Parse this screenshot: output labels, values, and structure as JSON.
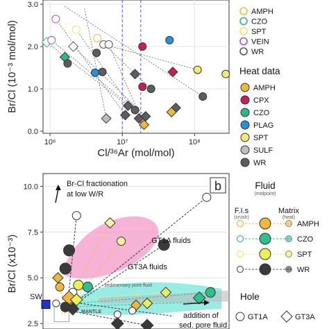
{
  "chart_data": [
    {
      "type": "scatter",
      "ylabel": "Br/Cl (10⁻³ mol/mol)",
      "xlabel": "Cl/³⁶Ar (mol/mol)",
      "xscale": "log",
      "xlim": [
        800000,
        300000000
      ],
      "ylim": [
        -0.05,
        3.1
      ],
      "x_ticks": [
        {
          "v": 1000000,
          "l": "10⁶"
        },
        {
          "v": 10000000,
          "l": "10⁷"
        },
        {
          "v": 100000000,
          "l": "10⁸"
        }
      ],
      "y_ticks": [
        {
          "v": 0,
          "l": "0.0"
        },
        {
          "v": 1,
          "l": "1.0"
        },
        {
          "v": 2,
          "l": "2.0"
        },
        {
          "v": 3,
          "l": "3.0"
        }
      ],
      "grid": true,
      "vertical_dashed_lines_x": [
        10000000,
        18000000
      ],
      "legend": {
        "fluid_items": [
          {
            "label": "AMPH",
            "color": "#e8c33b"
          },
          {
            "label": "CZO",
            "color": "#34b38a"
          },
          {
            "label": "SPT",
            "color": "#e9e86a"
          },
          {
            "label": "VEIN",
            "color": "#a653c5"
          },
          {
            "label": "WR",
            "color": "#555555"
          }
        ],
        "heat_title": "Heat data",
        "heat_items": [
          {
            "label": "AMPH",
            "color": "#f1b63c"
          },
          {
            "label": "CPX",
            "color": "#c81d57"
          },
          {
            "label": "CZO",
            "color": "#2db88b"
          },
          {
            "label": "PLAG",
            "color": "#2a8fd9"
          },
          {
            "label": "SPT",
            "color": "#eeeb76"
          },
          {
            "label": "SULF",
            "color": "#bdbdbd"
          },
          {
            "label": "WR",
            "color": "#5e5e5e"
          }
        ]
      },
      "points": [
        {
          "x": 900000,
          "y": 2.1,
          "kind": "fluid",
          "shape": "diamond",
          "color": "#34b38a"
        },
        {
          "x": 1050000,
          "y": 2.15,
          "kind": "fluid",
          "shape": "circle",
          "color": "#a653c5"
        },
        {
          "x": 1200000,
          "y": 2.65,
          "kind": "fluid",
          "shape": "circle",
          "color": "#a653c5"
        },
        {
          "x": 2300000,
          "y": 2.4,
          "kind": "fluid",
          "shape": "circle",
          "color": "#e9e86a"
        },
        {
          "x": 2100000,
          "y": 2.0,
          "kind": "fluid",
          "shape": "diamond",
          "color": "#555555"
        },
        {
          "x": 5500000,
          "y": 2.05,
          "kind": "fluid",
          "shape": "circle",
          "color": "#555555"
        },
        {
          "x": 4500000,
          "y": 2.2,
          "kind": "fluid",
          "shape": "circle",
          "color": "#e8c33b"
        },
        {
          "x": 6500000,
          "y": 2.05,
          "kind": "fluid",
          "shape": "circle",
          "color": "#555555"
        },
        {
          "x": 1600000,
          "y": 1.75,
          "kind": "heat",
          "shape": "diamond",
          "color": "#2db88b"
        },
        {
          "x": 1750000,
          "y": 1.6,
          "kind": "heat",
          "shape": "circle",
          "color": "#5e5e5e"
        },
        {
          "x": 4400000,
          "y": 1.85,
          "kind": "heat",
          "shape": "circle",
          "color": "#5e5e5e"
        },
        {
          "x": 4200000,
          "y": 1.38,
          "kind": "heat",
          "shape": "circle",
          "color": "#2a8fd9"
        },
        {
          "x": 5300000,
          "y": 1.4,
          "kind": "heat",
          "shape": "circle",
          "color": "#5e5e5e"
        },
        {
          "x": 19000000,
          "y": 2.0,
          "kind": "heat",
          "shape": "circle",
          "color": "#c81d57"
        },
        {
          "x": 45000000,
          "y": 2.15,
          "kind": "heat",
          "shape": "circle",
          "color": "#2a8fd9"
        },
        {
          "x": 15000000,
          "y": 1.35,
          "kind": "heat",
          "shape": "diamond",
          "color": "#5e5e5e"
        },
        {
          "x": 19000000,
          "y": 1.05,
          "kind": "heat",
          "shape": "circle",
          "color": "#c81d57"
        },
        {
          "x": 25000000,
          "y": 1.0,
          "kind": "heat",
          "shape": "circle",
          "color": "#5e5e5e"
        },
        {
          "x": 50000000,
          "y": 1.4,
          "kind": "heat",
          "shape": "diamond",
          "color": "#c81d57"
        },
        {
          "x": 110000000,
          "y": 1.45,
          "kind": "heat",
          "shape": "circle",
          "color": "#eeeb76"
        },
        {
          "x": 270000000,
          "y": 1.35,
          "kind": "heat",
          "shape": "circle",
          "color": "#eeeb76"
        },
        {
          "x": 130000000,
          "y": 0.82,
          "kind": "heat",
          "shape": "circle",
          "color": "#5e5e5e"
        },
        {
          "x": 55000000,
          "y": 0.55,
          "kind": "heat",
          "shape": "diamond",
          "color": "#5e5e5e"
        },
        {
          "x": 48000000,
          "y": 0.45,
          "kind": "heat",
          "shape": "diamond",
          "color": "#f1b63c"
        },
        {
          "x": 12000000,
          "y": 0.6,
          "kind": "heat",
          "shape": "diamond",
          "color": "#5e5e5e"
        },
        {
          "x": 15000000,
          "y": 0.5,
          "kind": "heat",
          "shape": "circle",
          "color": "#5e5e5e"
        },
        {
          "x": 11000000,
          "y": 0.38,
          "kind": "heat",
          "shape": "diamond",
          "color": "#5e5e5e"
        },
        {
          "x": 17000000,
          "y": 0.3,
          "kind": "heat",
          "shape": "diamond",
          "color": "#5e5e5e"
        },
        {
          "x": 21000000,
          "y": 0.35,
          "kind": "heat",
          "shape": "diamond",
          "color": "#5e5e5e"
        },
        {
          "x": 6000000,
          "y": 0.3,
          "kind": "heat",
          "shape": "diamond",
          "color": "#bdbdbd"
        },
        {
          "x": 20000000,
          "y": 0.15,
          "kind": "heat",
          "shape": "diamond",
          "color": "#f1b63c"
        }
      ],
      "links": [
        [
          900000,
          2.1,
          12000000,
          0.6
        ],
        [
          1050000,
          2.15,
          15000000,
          0.5
        ],
        [
          1200000,
          2.65,
          11000000,
          0.38
        ],
        [
          2300000,
          2.4,
          17000000,
          0.3
        ],
        [
          2100000,
          2.0,
          21000000,
          0.35
        ],
        [
          4500000,
          2.2,
          25000000,
          1.0
        ],
        [
          5500000,
          2.05,
          110000000,
          1.45
        ],
        [
          1600000,
          2.95,
          130000000,
          0.82
        ],
        [
          6500000,
          2.05,
          20000000,
          0.15
        ],
        [
          3000000,
          2.9,
          6000000,
          0.3
        ]
      ]
    },
    {
      "type": "scatter",
      "panel_label": "b",
      "ylabel": "Br/Cl (x10⁻³)",
      "ylim": [
        2.2,
        10.7
      ],
      "xlim": [
        0,
        100
      ],
      "y_ticks": [
        {
          "v": 2.5,
          "l": "2.5"
        },
        {
          "v": 5,
          "l": "5.0"
        },
        {
          "v": 7.5,
          "l": "7.5"
        },
        {
          "v": 10,
          "l": "10.0"
        }
      ],
      "grid": true,
      "annotations": {
        "frac_line1": "Br-Cl fractionation",
        "frac_line2": "at low W/R",
        "gt1a": "GT1A fluids",
        "gt3a": "GT3A fluids",
        "sedimentary": "sedimentary pore fluid",
        "sw": "SW",
        "mantle": "MANTLE",
        "pore_line1": "addition of",
        "pore_line2": "sed. pore fluid"
      },
      "legend": {
        "title": "Fluid",
        "midpoint": "(midpoint)",
        "fis": "F.I.s",
        "fis_sub": "(crush)",
        "matrix": "Matrix",
        "matrix_sub": "(heat)",
        "items": [
          {
            "label": "AMPH",
            "color": "#f2b73a"
          },
          {
            "label": "CZO",
            "color": "#2fbf8e"
          },
          {
            "label": "SPT",
            "color": "#e9f05a"
          },
          {
            "label": "WR",
            "color": "#3a3a3a"
          }
        ],
        "hole_title": "Hole",
        "holes": [
          {
            "label": "GT1A",
            "shape": "circle"
          },
          {
            "label": "GT3A",
            "shape": "diamond"
          }
        ]
      },
      "lines": [
        {
          "x1": 12,
          "y1": 3.2,
          "x2": 88,
          "y2": 9.4,
          "color": "#333"
        },
        {
          "x1": 13,
          "y1": 3.3,
          "x2": 18,
          "y2": 8.4,
          "color": "#333"
        },
        {
          "x1": 14,
          "y1": 3.4,
          "x2": 42,
          "y2": 7.0,
          "color": "#e8c33b"
        },
        {
          "x1": 10,
          "y1": 3.0,
          "x2": 36,
          "y2": 8.0,
          "color": "#e8c33b"
        },
        {
          "x1": 16,
          "y1": 3.5,
          "x2": 65,
          "y2": 6.8,
          "color": "#333"
        },
        {
          "x1": 12,
          "y1": 3.4,
          "x2": 88,
          "y2": 3.7,
          "color": "#2fbf8e"
        },
        {
          "x1": 18,
          "y1": 3.6,
          "x2": 90,
          "y2": 4.2,
          "color": "#2fbf8e"
        },
        {
          "x1": 15,
          "y1": 3.8,
          "x2": 66,
          "y2": 4.2,
          "color": "#e9f05a"
        },
        {
          "x1": 14,
          "y1": 3.2,
          "x2": 56,
          "y2": 2.4,
          "color": "#333"
        },
        {
          "x1": 20,
          "y1": 3.6,
          "x2": 70,
          "y2": 2.9,
          "color": "#333"
        },
        {
          "x1": 12,
          "y1": 3.0,
          "x2": 8,
          "y2": 5.2,
          "color": "#e8c33b"
        }
      ],
      "points": [
        {
          "x": 18,
          "y": 8.4,
          "shape": "circle",
          "color": "#ffffff",
          "size": 6
        },
        {
          "x": 88,
          "y": 9.4,
          "shape": "circle",
          "color": "#ffffff",
          "size": 6
        },
        {
          "x": 36,
          "y": 8.0,
          "shape": "diamond",
          "color": "#fff4b0",
          "size": 6
        },
        {
          "x": 42,
          "y": 7.0,
          "shape": "circle",
          "color": "#fff0a0",
          "size": 6
        },
        {
          "x": 14,
          "y": 6.5,
          "shape": "circle",
          "color": "#3a3a3a",
          "size": 8
        },
        {
          "x": 65,
          "y": 6.8,
          "shape": "circle",
          "color": "#3a3a3a",
          "size": 8
        },
        {
          "x": 12,
          "y": 5.5,
          "shape": "circle",
          "color": "#3a3a3a",
          "size": 8
        },
        {
          "x": 8,
          "y": 5.0,
          "shape": "diamond",
          "color": "#f2b73a",
          "size": 6
        },
        {
          "x": 9,
          "y": 4.5,
          "shape": "circle",
          "color": "#f2b73a",
          "size": 6
        },
        {
          "x": 16,
          "y": 4.2,
          "shape": "circle",
          "color": "#ffffff",
          "size": 6
        },
        {
          "x": 19,
          "y": 4.6,
          "shape": "circle",
          "color": "#e9f05a",
          "size": 7
        },
        {
          "x": 24,
          "y": 4.5,
          "shape": "circle",
          "color": "#2fbf8e",
          "size": 7
        },
        {
          "x": 14,
          "y": 3.9,
          "shape": "diamond",
          "color": "#f2b73a",
          "size": 8
        },
        {
          "x": 18,
          "y": 3.8,
          "shape": "diamond",
          "color": "#e9f05a",
          "size": 7
        },
        {
          "x": 12,
          "y": 3.4,
          "shape": "circle",
          "color": "#3a3a3a",
          "size": 7
        },
        {
          "x": 16,
          "y": 3.3,
          "shape": "diamond",
          "color": "#3a3a3a",
          "size": 7
        },
        {
          "x": 7,
          "y": 3.6,
          "shape": "circle",
          "color": "#ffffff",
          "size": 5
        },
        {
          "x": 66,
          "y": 4.2,
          "shape": "diamond",
          "color": "#e9f05a",
          "size": 6
        },
        {
          "x": 84,
          "y": 3.9,
          "shape": "diamond",
          "color": "#2fbf8e",
          "size": 7
        },
        {
          "x": 90,
          "y": 4.2,
          "shape": "circle",
          "color": "#2fbf8e",
          "size": 7
        },
        {
          "x": 56,
          "y": 3.6,
          "shape": "diamond",
          "color": "#e9f05a",
          "size": 6
        },
        {
          "x": 50,
          "y": 3.5,
          "shape": "diamond",
          "color": "#f2b73a",
          "size": 6
        },
        {
          "x": 48,
          "y": 3.2,
          "shape": "circle",
          "color": "#ffffff",
          "size": 5
        },
        {
          "x": 40,
          "y": 2.5,
          "shape": "diamond",
          "color": "#3a3a3a",
          "size": 7
        },
        {
          "x": 56,
          "y": 2.4,
          "shape": "diamond",
          "color": "#3a3a3a",
          "size": 7
        },
        {
          "x": 40,
          "y": 3.0,
          "shape": "circle",
          "color": "#ffffff",
          "size": 5
        }
      ]
    }
  ]
}
